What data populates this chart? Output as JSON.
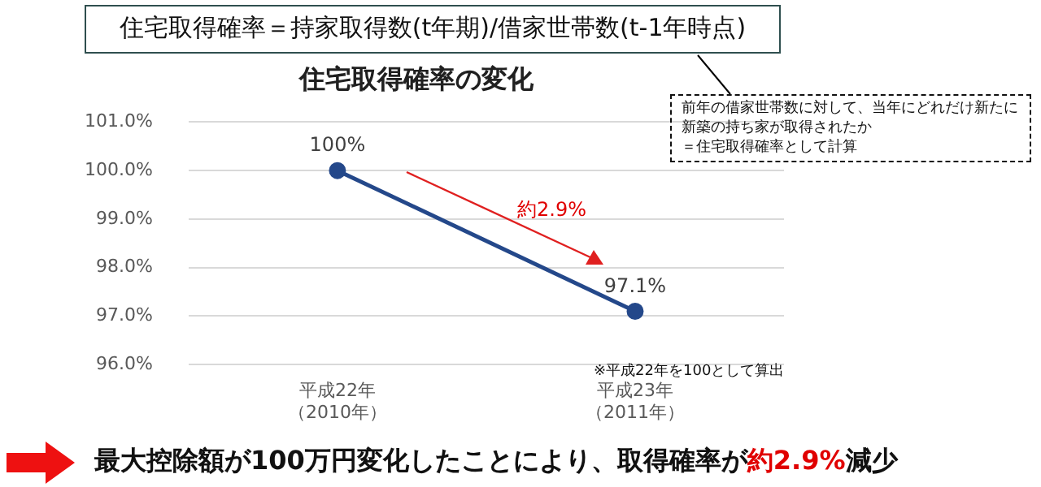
{
  "chart_data": {
    "type": "line",
    "title": "住宅取得確率の変化",
    "categories": [
      "平成22年（2010年）",
      "平成23年（2011年）"
    ],
    "series": [
      {
        "color": "#24488a",
        "values": [
          100,
          97.1
        ],
        "value_labels": [
          "100%",
          "97.1%"
        ]
      }
    ],
    "ylim": [
      96,
      101
    ],
    "yticks": [
      {
        "value": 96,
        "label": "96.0%"
      },
      {
        "value": 97,
        "label": "97.0%"
      },
      {
        "value": 98,
        "label": "98.0%"
      },
      {
        "value": 99,
        "label": "99.0%"
      },
      {
        "value": 100,
        "label": "100.0%"
      },
      {
        "value": 101,
        "label": "101.0%"
      }
    ],
    "grid": "y",
    "legend": false,
    "marker": "circle",
    "line_style": "solid",
    "annotations": [
      "住宅取得確率＝持家取得数(t年期)/借家世帯数(t-1年時点)",
      "約2.9%",
      "前年の借家世帯数に対して、当年にどれだけ新たに新築の持ち家が取得されたか＝住宅取得確率として計算",
      "※平成22年を100として算出",
      "最大控除額が100万円変化したことにより、取得確率が約2.9%減少"
    ]
  }
}
